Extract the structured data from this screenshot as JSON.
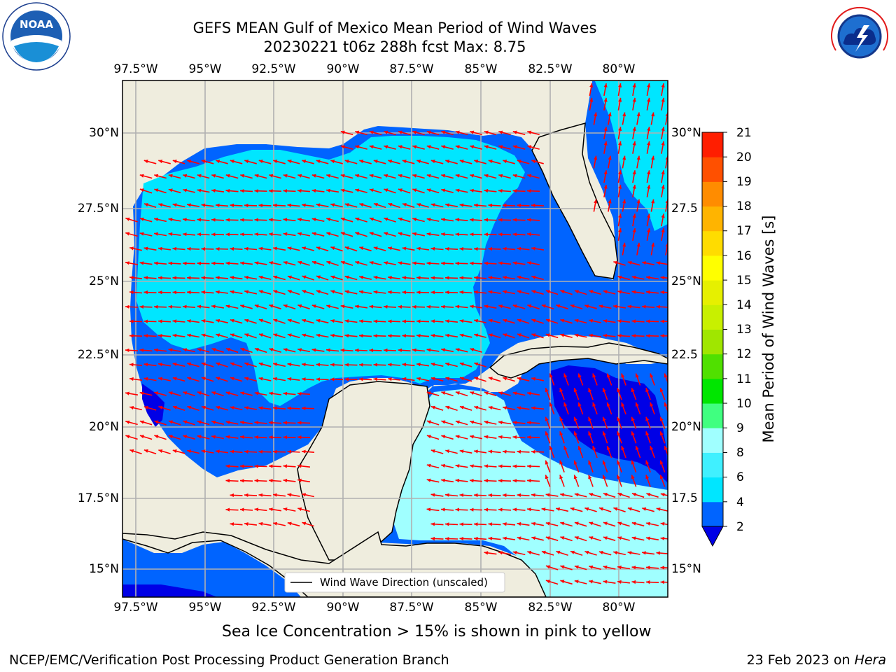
{
  "title": {
    "line1": "GEFS MEAN Gulf of Mexico Mean Period of Wind Waves",
    "line2": "20230221 t06z 288h fcst   Max: 8.75"
  },
  "map": {
    "lon_ticks": [
      "97.5°W",
      "95°W",
      "92.5°W",
      "90°W",
      "87.5°W",
      "85°W",
      "82.5°W",
      "80°W"
    ],
    "lat_ticks_left": [
      "30°N",
      "27.5°N",
      "25°N",
      "22.5°N",
      "20°N",
      "17.5°N",
      "15°N"
    ],
    "lat_ticks_right": [
      "30°N",
      "27.5",
      "25°N",
      "22.5",
      "20°N",
      "17.5",
      "15°N"
    ],
    "legend_label": "Wind Wave Direction (unscaled)",
    "colors": {
      "land": "#efedde",
      "coast": "#000000",
      "arrow": "#ff0000",
      "grid": "#b0b0b0"
    }
  },
  "colorbar": {
    "label": "Mean Period of Wind Waves [s]",
    "ticks": [
      "2",
      "4",
      "6",
      "8",
      "9",
      "10",
      "11",
      "12",
      "13",
      "14",
      "15",
      "16",
      "17",
      "18",
      "19",
      "20",
      "21"
    ],
    "colors": [
      "#0064ff",
      "#00e6ff",
      "#40f0ff",
      "#a0ffff",
      "#40ff80",
      "#00e600",
      "#50e000",
      "#a0e600",
      "#c8f000",
      "#e6f000",
      "#ffff00",
      "#ffdc00",
      "#ffb400",
      "#ff8c00",
      "#ff5000",
      "#ff1e00"
    ],
    "extend_color": "#0000e6"
  },
  "note": "Sea Ice Concentration > 15% is shown in pink to yellow",
  "footer": {
    "left": "NCEP/EMC/Verification Post Processing Product Generation Branch",
    "date": "23 Feb 2023 on ",
    "machine": "Hera"
  },
  "logos": {
    "noaa": "NOAA",
    "nws": "NATIONAL WEATHER SERVICE"
  }
}
